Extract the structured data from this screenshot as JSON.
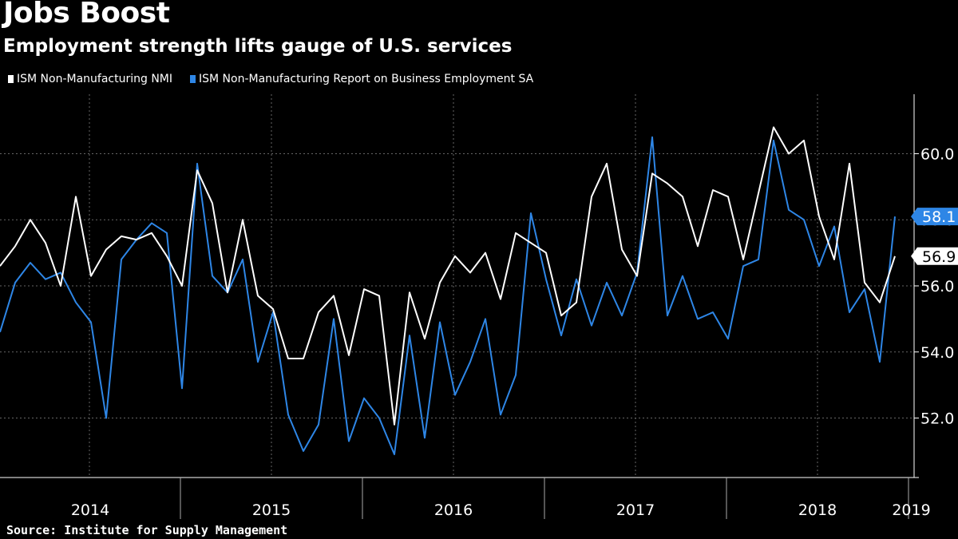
{
  "header": {
    "title": "Jobs Boost",
    "subtitle": "Employment strength lifts gauge of U.S. services"
  },
  "footer": {
    "source": "Source: Institute for Supply Management"
  },
  "colors": {
    "background": "#000000",
    "nmi": "#ffffff",
    "employment": "#2e86e6",
    "grid": "#666666",
    "axis": "#ffffff"
  },
  "chart_data": {
    "type": "line",
    "title": "Jobs Boost",
    "subtitle": "Employment strength lifts gauge of U.S. services",
    "xlabel": "",
    "ylabel": "",
    "x_start": "2014-01",
    "ylim": [
      50.2,
      61.8
    ],
    "y_ticks": [
      52.0,
      54.0,
      56.0,
      58.0,
      60.0
    ],
    "y_tick_labels": [
      "52.0",
      "54.0",
      "56.0",
      "58.0",
      "60.0"
    ],
    "x_year_labels": [
      "2014",
      "2015",
      "2016",
      "2017",
      "2018",
      "2019"
    ],
    "grid": true,
    "legend_position": "top-left",
    "series": [
      {
        "name": "ISM Non-Manufacturing NMI",
        "color": "#ffffff",
        "last_label": "56.9",
        "values": [
          56.6,
          57.2,
          58.0,
          57.3,
          56.0,
          58.7,
          56.3,
          57.1,
          57.5,
          57.4,
          57.6,
          56.9,
          56.0,
          59.5,
          58.5,
          55.8,
          58.0,
          55.7,
          55.3,
          53.8,
          53.8,
          55.2,
          55.7,
          53.9,
          55.9,
          55.7,
          51.8,
          55.8,
          54.4,
          56.1,
          56.9,
          56.4,
          57.0,
          55.6,
          57.6,
          57.3,
          57.0,
          55.1,
          55.5,
          58.7,
          59.7,
          57.1,
          56.3,
          59.4,
          59.1,
          58.7,
          57.2,
          58.9,
          58.7,
          56.8,
          58.8,
          60.8,
          60.0,
          60.4,
          58.1,
          56.8,
          59.7,
          56.1,
          55.5,
          56.9
        ]
      },
      {
        "name": "ISM Non-Manufacturing Report on Business Employment SA",
        "color": "#2e86e6",
        "last_label": "58.1",
        "values": [
          54.6,
          56.1,
          56.7,
          56.2,
          56.4,
          55.5,
          54.9,
          52.0,
          56.8,
          57.4,
          57.9,
          57.6,
          52.9,
          59.7,
          56.3,
          55.8,
          56.8,
          53.7,
          55.2,
          52.1,
          51.0,
          51.8,
          55.0,
          51.3,
          52.6,
          52.0,
          50.9,
          54.5,
          51.4,
          54.9,
          52.7,
          53.7,
          55.0,
          52.1,
          53.3,
          58.2,
          56.2,
          54.5,
          56.2,
          54.8,
          56.1,
          55.1,
          56.4,
          60.5,
          55.1,
          56.3,
          55.0,
          55.2,
          54.4,
          56.6,
          56.8,
          60.4,
          58.3,
          58.0,
          56.6,
          57.8,
          55.2,
          55.9,
          53.7,
          58.1
        ]
      }
    ]
  }
}
